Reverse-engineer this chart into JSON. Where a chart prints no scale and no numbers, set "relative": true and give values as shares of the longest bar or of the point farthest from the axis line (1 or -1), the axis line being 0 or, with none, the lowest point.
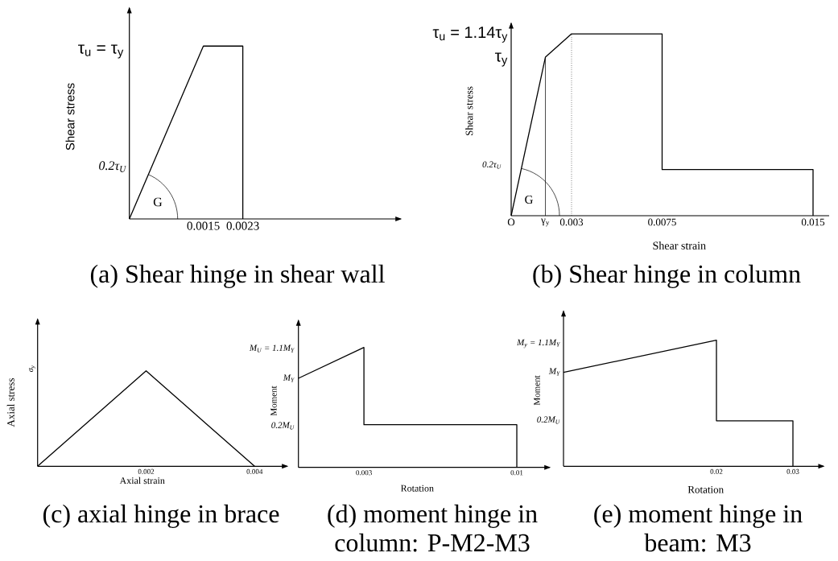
{
  "chart_data": [
    {
      "type": "line",
      "relative": true,
      "title": "(a) Shear hinge in shear wall",
      "ylabel": "Shear stress",
      "xlim": [
        0,
        0.0055
      ],
      "xticks": [
        0.0015,
        0.0023
      ],
      "series": [
        {
          "color": "#000000",
          "line_style": "solid",
          "x": [
            0,
            0.0015,
            0.0023,
            0.0023
          ],
          "values": [
            0,
            1,
            1,
            0
          ]
        }
      ],
      "annotations": [
        "τ$_{u}$ = τ$_{y}$",
        "0.2τ$_{U}$",
        "G"
      ]
    },
    {
      "type": "line",
      "relative": true,
      "title": "(b) Shear hinge in column",
      "xlabel": "Shear strain",
      "ylabel": "Shear stress",
      "xlim": [
        0,
        0.0158
      ],
      "xticks": [
        {
          "value": 0,
          "label": "O"
        },
        {
          "value": 0.0017,
          "label": "γ$_{y}$"
        },
        0.003,
        0.0075,
        0.015
      ],
      "series": [
        {
          "color": "#000000",
          "line_style": "solid",
          "x": [
            0,
            0.0017,
            0.003,
            0.0075,
            0.0075,
            0.015,
            0.015
          ],
          "values": [
            0,
            0.872,
            1,
            1,
            0.254,
            0.254,
            0
          ]
        },
        {
          "color": "#000000",
          "line_style": "solid",
          "x": [
            0.0017,
            0.0017
          ],
          "values": [
            0,
            0.872
          ]
        },
        {
          "color": "#000000",
          "line_style": "dotted",
          "x": [
            0.003,
            0.003
          ],
          "values": [
            0,
            1
          ]
        }
      ],
      "annotations": [
        "τ$_{u}$ = 1.14τ$_{y}$",
        "τ$_{y}$",
        "0.2τ$_{U}$",
        "G"
      ]
    },
    {
      "type": "line",
      "relative": true,
      "title": "(c) axial hinge in brace",
      "xlabel": "Axial strain",
      "ylabel": "Axial stress",
      "xlim": [
        0,
        0.0046
      ],
      "xticks": [
        0.002,
        0.004
      ],
      "series": [
        {
          "color": "#000000",
          "line_style": "solid",
          "x": [
            0,
            0.002,
            0.004
          ],
          "values": [
            0,
            1,
            0
          ]
        }
      ],
      "annotations": [
        "σ$_{y}$"
      ]
    },
    {
      "type": "line",
      "relative": true,
      "title": "(d) moment hinge in column: P-M2-M3",
      "xlabel": "Rotation",
      "ylabel": "Moment",
      "xlim": [
        0,
        0.0115
      ],
      "xticks": [
        0.003,
        0.01
      ],
      "series": [
        {
          "color": "#000000",
          "line_style": "solid",
          "x": [
            0,
            0.003,
            0.003,
            0.01,
            0.01
          ],
          "values": [
            0.743,
            1,
            0.356,
            0.356,
            0
          ]
        }
      ],
      "annotations": [
        "M$_{U}$ = 1.1M$_{Y}$",
        "M$_{Y}$",
        "0.2M$_{U}$"
      ]
    },
    {
      "type": "line",
      "relative": true,
      "title": "(e) moment hinge in beam: M3",
      "xlabel": "Rotation",
      "ylabel": "Moment",
      "xlim": [
        0,
        0.034
      ],
      "xticks": [
        0.02,
        0.03
      ],
      "series": [
        {
          "color": "#000000",
          "line_style": "solid",
          "x": [
            0,
            0.02,
            0.02,
            0.03,
            0.03
          ],
          "values": [
            0.745,
            1,
            0.361,
            0.361,
            0
          ]
        }
      ],
      "annotations": [
        "M$_{y}$ = 1.1M$_{Y}$",
        "M$_{Y}$",
        "0.2M$_{U}$"
      ]
    }
  ]
}
